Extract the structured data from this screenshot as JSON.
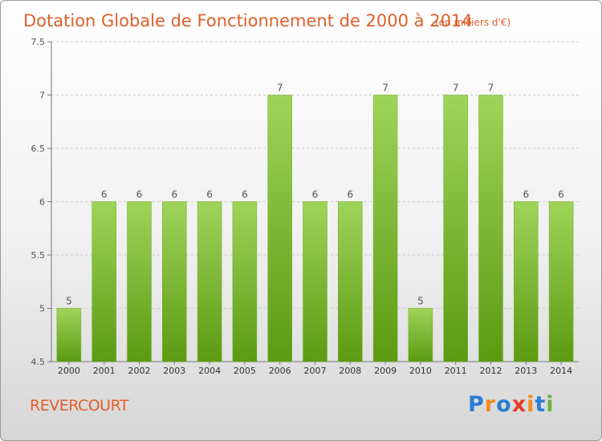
{
  "commune": "REVERCOURT",
  "logo": {
    "text": "Proxiti",
    "letters": [
      {
        "ch": "P",
        "color": "#2a7fd4"
      },
      {
        "ch": "r",
        "color": "#f28c1e"
      },
      {
        "ch": "o",
        "color": "#2a7fd4"
      },
      {
        "ch": "x",
        "color": "#e23a2e"
      },
      {
        "ch": "i",
        "color": "#f28c1e"
      },
      {
        "ch": "t",
        "color": "#2a7fd4"
      },
      {
        "ch": "i",
        "color": "#6cb33f"
      }
    ]
  },
  "colors": {
    "title": "#e0602a",
    "bar_light": "#9fd45a",
    "bar_dark": "#5c9a12",
    "grid": "#cccccc"
  },
  "chart_data": {
    "type": "bar",
    "title": "Dotation Globale de Fonctionnement de 2000 à 2014",
    "unit": "(en milliers d'€)",
    "categories": [
      "2000",
      "2001",
      "2002",
      "2003",
      "2004",
      "2005",
      "2006",
      "2007",
      "2008",
      "2009",
      "2010",
      "2011",
      "2012",
      "2013",
      "2014"
    ],
    "values": [
      5,
      6,
      6,
      6,
      6,
      6,
      7,
      6,
      6,
      7,
      5,
      7,
      7,
      6,
      6
    ],
    "data_labels": [
      "5",
      "6",
      "6",
      "6",
      "6",
      "6",
      "7",
      "6",
      "6",
      "7",
      "5",
      "7",
      "7",
      "6",
      "6"
    ],
    "ylim": [
      4.5,
      7.5
    ],
    "yticks": [
      4.5,
      5,
      5.5,
      6,
      6.5,
      7,
      7.5
    ],
    "ytick_labels": [
      "4.5",
      "5",
      "5.5",
      "6",
      "6.5",
      "7",
      "7.5"
    ],
    "grid": true,
    "xlabel": "",
    "ylabel": ""
  }
}
